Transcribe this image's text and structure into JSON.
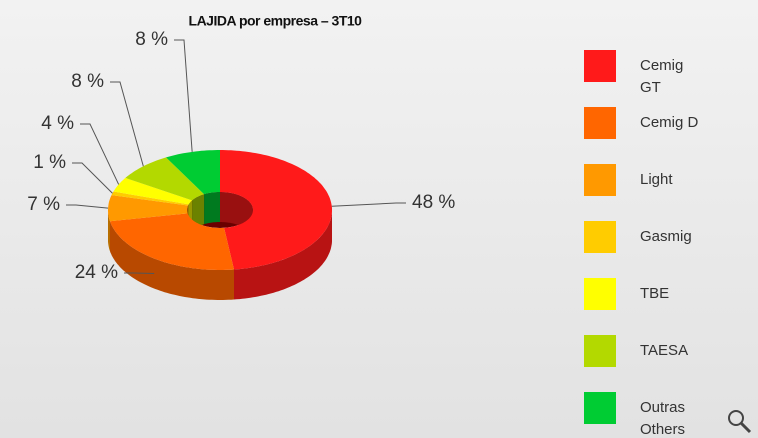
{
  "chart_data": {
    "type": "pie",
    "title": "LAJIDA por empresa – 3T10",
    "categories": [
      "Cemig GT",
      "Cemig D",
      "Light",
      "Gasmig",
      "TBE",
      "TAESA",
      "Outras Others"
    ],
    "values": [
      48,
      24,
      7,
      1,
      4,
      8,
      8
    ],
    "value_labels": [
      "48 %",
      "24 %",
      "7 %",
      "1 %",
      "4 %",
      "8 %",
      "8 %"
    ],
    "colors": [
      "#ff1a1a",
      "#ff6600",
      "#ff9900",
      "#ffcc00",
      "#ffff00",
      "#b3d900",
      "#00cc33"
    ],
    "legend": "right"
  }
}
